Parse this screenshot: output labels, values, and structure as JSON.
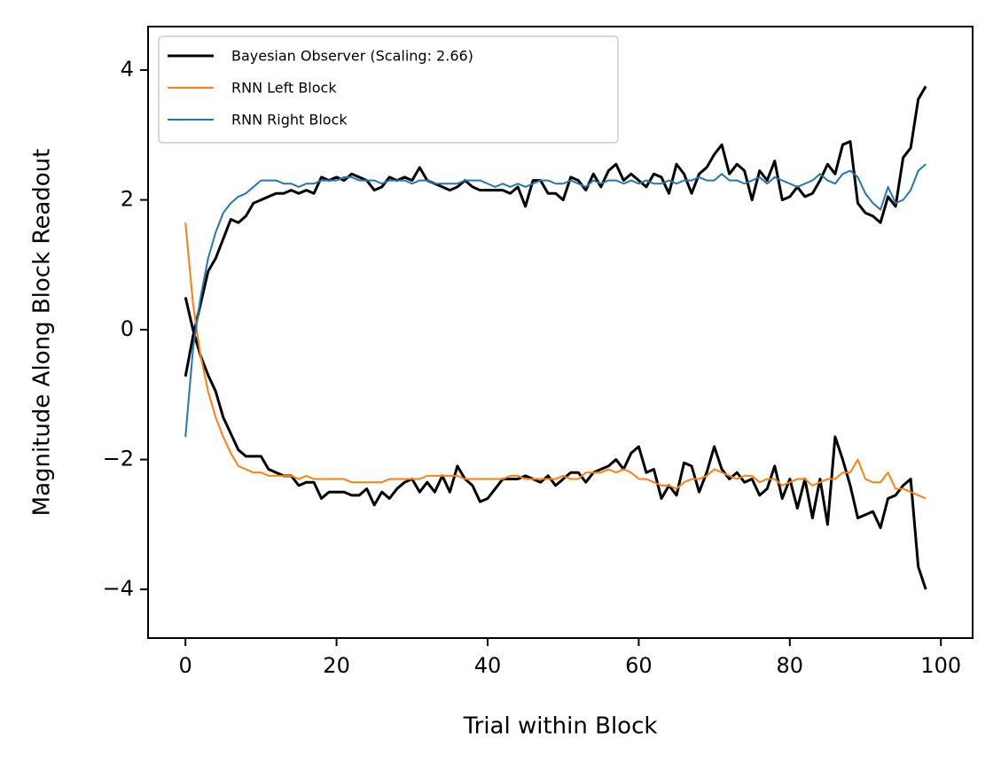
{
  "chart_data": {
    "type": "line",
    "xlabel": "Trial within Block",
    "ylabel": "Magnitude Along Block Readout",
    "xlim": [
      -4.95,
      104.2
    ],
    "ylim": [
      -4.75,
      4.67
    ],
    "xticks": [
      0,
      20,
      40,
      60,
      80,
      100
    ],
    "yticks": [
      {
        "value": -4,
        "label": "−4"
      },
      {
        "value": -2,
        "label": "−2"
      },
      0,
      2,
      4
    ],
    "legend": "upper left",
    "x": [
      0,
      1,
      2,
      3,
      4,
      5,
      6,
      7,
      8,
      9,
      10,
      11,
      12,
      13,
      14,
      15,
      16,
      17,
      18,
      19,
      20,
      21,
      22,
      23,
      24,
      25,
      26,
      27,
      28,
      29,
      30,
      31,
      32,
      33,
      34,
      35,
      36,
      37,
      38,
      39,
      40,
      41,
      42,
      43,
      44,
      45,
      46,
      47,
      48,
      49,
      50,
      51,
      52,
      53,
      54,
      55,
      56,
      57,
      58,
      59,
      60,
      61,
      62,
      63,
      64,
      65,
      66,
      67,
      68,
      69,
      70,
      71,
      72,
      73,
      74,
      75,
      76,
      77,
      78,
      79,
      80,
      81,
      82,
      83,
      84,
      85,
      86,
      87,
      88,
      89,
      90,
      91,
      92,
      93,
      94,
      95,
      96,
      97,
      98
    ],
    "series": [
      {
        "name": "Bayesian Observer (Scaling: 2.66)",
        "color": "#000000",
        "width": 3,
        "values": [
          -0.72,
          -0.1,
          0.4,
          0.9,
          1.1,
          1.4,
          1.7,
          1.65,
          1.75,
          1.95,
          2.0,
          2.05,
          2.1,
          2.1,
          2.15,
          2.1,
          2.15,
          2.1,
          2.35,
          2.3,
          2.35,
          2.3,
          2.4,
          2.35,
          2.3,
          2.15,
          2.2,
          2.35,
          2.3,
          2.35,
          2.3,
          2.5,
          2.3,
          2.25,
          2.2,
          2.15,
          2.2,
          2.3,
          2.2,
          2.15,
          2.15,
          2.15,
          2.15,
          2.1,
          2.2,
          1.9,
          2.3,
          2.3,
          2.1,
          2.1,
          2.0,
          2.35,
          2.3,
          2.15,
          2.4,
          2.2,
          2.45,
          2.55,
          2.3,
          2.4,
          2.3,
          2.2,
          2.4,
          2.35,
          2.1,
          2.55,
          2.4,
          2.1,
          2.4,
          2.5,
          2.7,
          2.85,
          2.4,
          2.55,
          2.45,
          2.0,
          2.45,
          2.3,
          2.6,
          2.0,
          2.05,
          2.2,
          2.05,
          2.1,
          2.3,
          2.55,
          2.4,
          2.85,
          2.9,
          1.95,
          1.8,
          1.75,
          1.65,
          2.05,
          1.9,
          2.65,
          2.8,
          3.55,
          3.75
        ]
      },
      {
        "color": "#000000",
        "width": 3,
        "values": [
          0.5,
          0.0,
          -0.4,
          -0.7,
          -0.95,
          -1.35,
          -1.6,
          -1.85,
          -1.95,
          -1.95,
          -1.95,
          -2.15,
          -2.2,
          -2.25,
          -2.25,
          -2.4,
          -2.35,
          -2.35,
          -2.6,
          -2.5,
          -2.5,
          -2.5,
          -2.55,
          -2.55,
          -2.45,
          -2.7,
          -2.5,
          -2.6,
          -2.45,
          -2.35,
          -2.3,
          -2.5,
          -2.35,
          -2.5,
          -2.25,
          -2.5,
          -2.1,
          -2.3,
          -2.4,
          -2.65,
          -2.6,
          -2.45,
          -2.3,
          -2.3,
          -2.3,
          -2.25,
          -2.3,
          -2.35,
          -2.25,
          -2.4,
          -2.3,
          -2.2,
          -2.2,
          -2.35,
          -2.2,
          -2.15,
          -2.1,
          -2.0,
          -2.15,
          -1.9,
          -1.8,
          -2.2,
          -2.15,
          -2.6,
          -2.4,
          -2.55,
          -2.05,
          -2.1,
          -2.5,
          -2.2,
          -1.8,
          -2.15,
          -2.3,
          -2.2,
          -2.35,
          -2.3,
          -2.55,
          -2.45,
          -2.1,
          -2.6,
          -2.3,
          -2.75,
          -2.3,
          -2.9,
          -2.3,
          -3.0,
          -1.65,
          -2.0,
          -2.4,
          -2.9,
          -2.85,
          -2.8,
          -3.05,
          -2.6,
          -2.55,
          -2.4,
          -2.3,
          -3.65,
          -4.0
        ]
      },
      {
        "name": "RNN Left Block",
        "color": "#ff7f0e",
        "width": 2,
        "values": [
          1.65,
          0.4,
          -0.4,
          -0.95,
          -1.35,
          -1.65,
          -1.9,
          -2.1,
          -2.15,
          -2.2,
          -2.2,
          -2.25,
          -2.25,
          -2.25,
          -2.25,
          -2.3,
          -2.25,
          -2.3,
          -2.3,
          -2.3,
          -2.3,
          -2.3,
          -2.35,
          -2.35,
          -2.35,
          -2.35,
          -2.35,
          -2.3,
          -2.3,
          -2.3,
          -2.3,
          -2.3,
          -2.25,
          -2.25,
          -2.25,
          -2.25,
          -2.25,
          -2.3,
          -2.3,
          -2.3,
          -2.3,
          -2.3,
          -2.3,
          -2.25,
          -2.25,
          -2.3,
          -2.3,
          -2.3,
          -2.3,
          -2.3,
          -2.25,
          -2.3,
          -2.3,
          -2.2,
          -2.2,
          -2.2,
          -2.15,
          -2.2,
          -2.15,
          -2.2,
          -2.3,
          -2.3,
          -2.35,
          -2.4,
          -2.4,
          -2.45,
          -2.35,
          -2.3,
          -2.3,
          -2.25,
          -2.15,
          -2.2,
          -2.25,
          -2.3,
          -2.25,
          -2.25,
          -2.35,
          -2.3,
          -2.3,
          -2.4,
          -2.35,
          -2.3,
          -2.3,
          -2.4,
          -2.35,
          -2.3,
          -2.3,
          -2.2,
          -2.2,
          -2.0,
          -2.3,
          -2.35,
          -2.35,
          -2.2,
          -2.45,
          -2.45,
          -2.5,
          -2.55,
          -2.6
        ]
      },
      {
        "name": "RNN Right Block",
        "color": "#1f77b4",
        "width": 2,
        "values": [
          -1.65,
          -0.3,
          0.5,
          1.1,
          1.5,
          1.8,
          1.95,
          2.05,
          2.1,
          2.2,
          2.3,
          2.3,
          2.3,
          2.25,
          2.25,
          2.2,
          2.25,
          2.25,
          2.3,
          2.3,
          2.3,
          2.35,
          2.35,
          2.3,
          2.3,
          2.3,
          2.25,
          2.3,
          2.3,
          2.3,
          2.25,
          2.3,
          2.3,
          2.25,
          2.25,
          2.25,
          2.25,
          2.3,
          2.3,
          2.3,
          2.25,
          2.2,
          2.25,
          2.2,
          2.25,
          2.2,
          2.25,
          2.3,
          2.3,
          2.25,
          2.25,
          2.3,
          2.25,
          2.2,
          2.3,
          2.25,
          2.3,
          2.3,
          2.25,
          2.3,
          2.25,
          2.3,
          2.25,
          2.25,
          2.3,
          2.25,
          2.3,
          2.3,
          2.35,
          2.3,
          2.3,
          2.4,
          2.3,
          2.3,
          2.25,
          2.3,
          2.35,
          2.25,
          2.35,
          2.3,
          2.25,
          2.2,
          2.25,
          2.3,
          2.4,
          2.3,
          2.25,
          2.4,
          2.45,
          2.35,
          2.1,
          1.95,
          1.85,
          2.2,
          1.95,
          2.0,
          2.15,
          2.45,
          2.55
        ]
      }
    ]
  }
}
